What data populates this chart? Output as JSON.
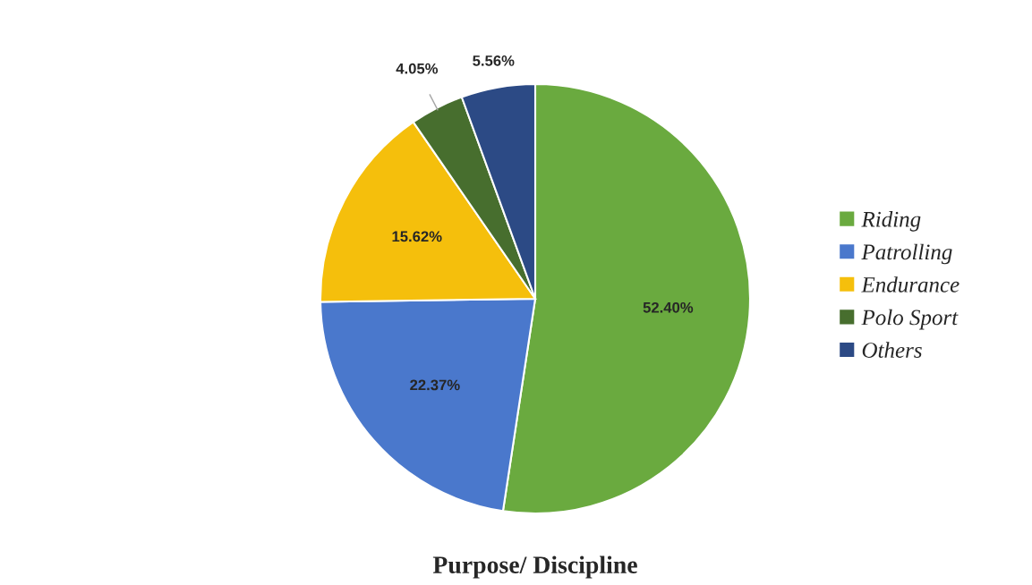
{
  "chart_data": {
    "type": "pie",
    "title": "Purpose/ Discipline",
    "categories": [
      "Riding",
      "Patrolling",
      "Endurance",
      "Polo Sport",
      "Others"
    ],
    "values": [
      52.4,
      22.37,
      15.62,
      4.05,
      5.56
    ],
    "colors": [
      "#6aaa3f",
      "#4a78cc",
      "#f5bf0c",
      "#476e2e",
      "#2c4a85"
    ],
    "value_labels": [
      "52.40%",
      "22.37%",
      "15.62%",
      "4.05%",
      "5.56%"
    ],
    "legend": "right"
  }
}
